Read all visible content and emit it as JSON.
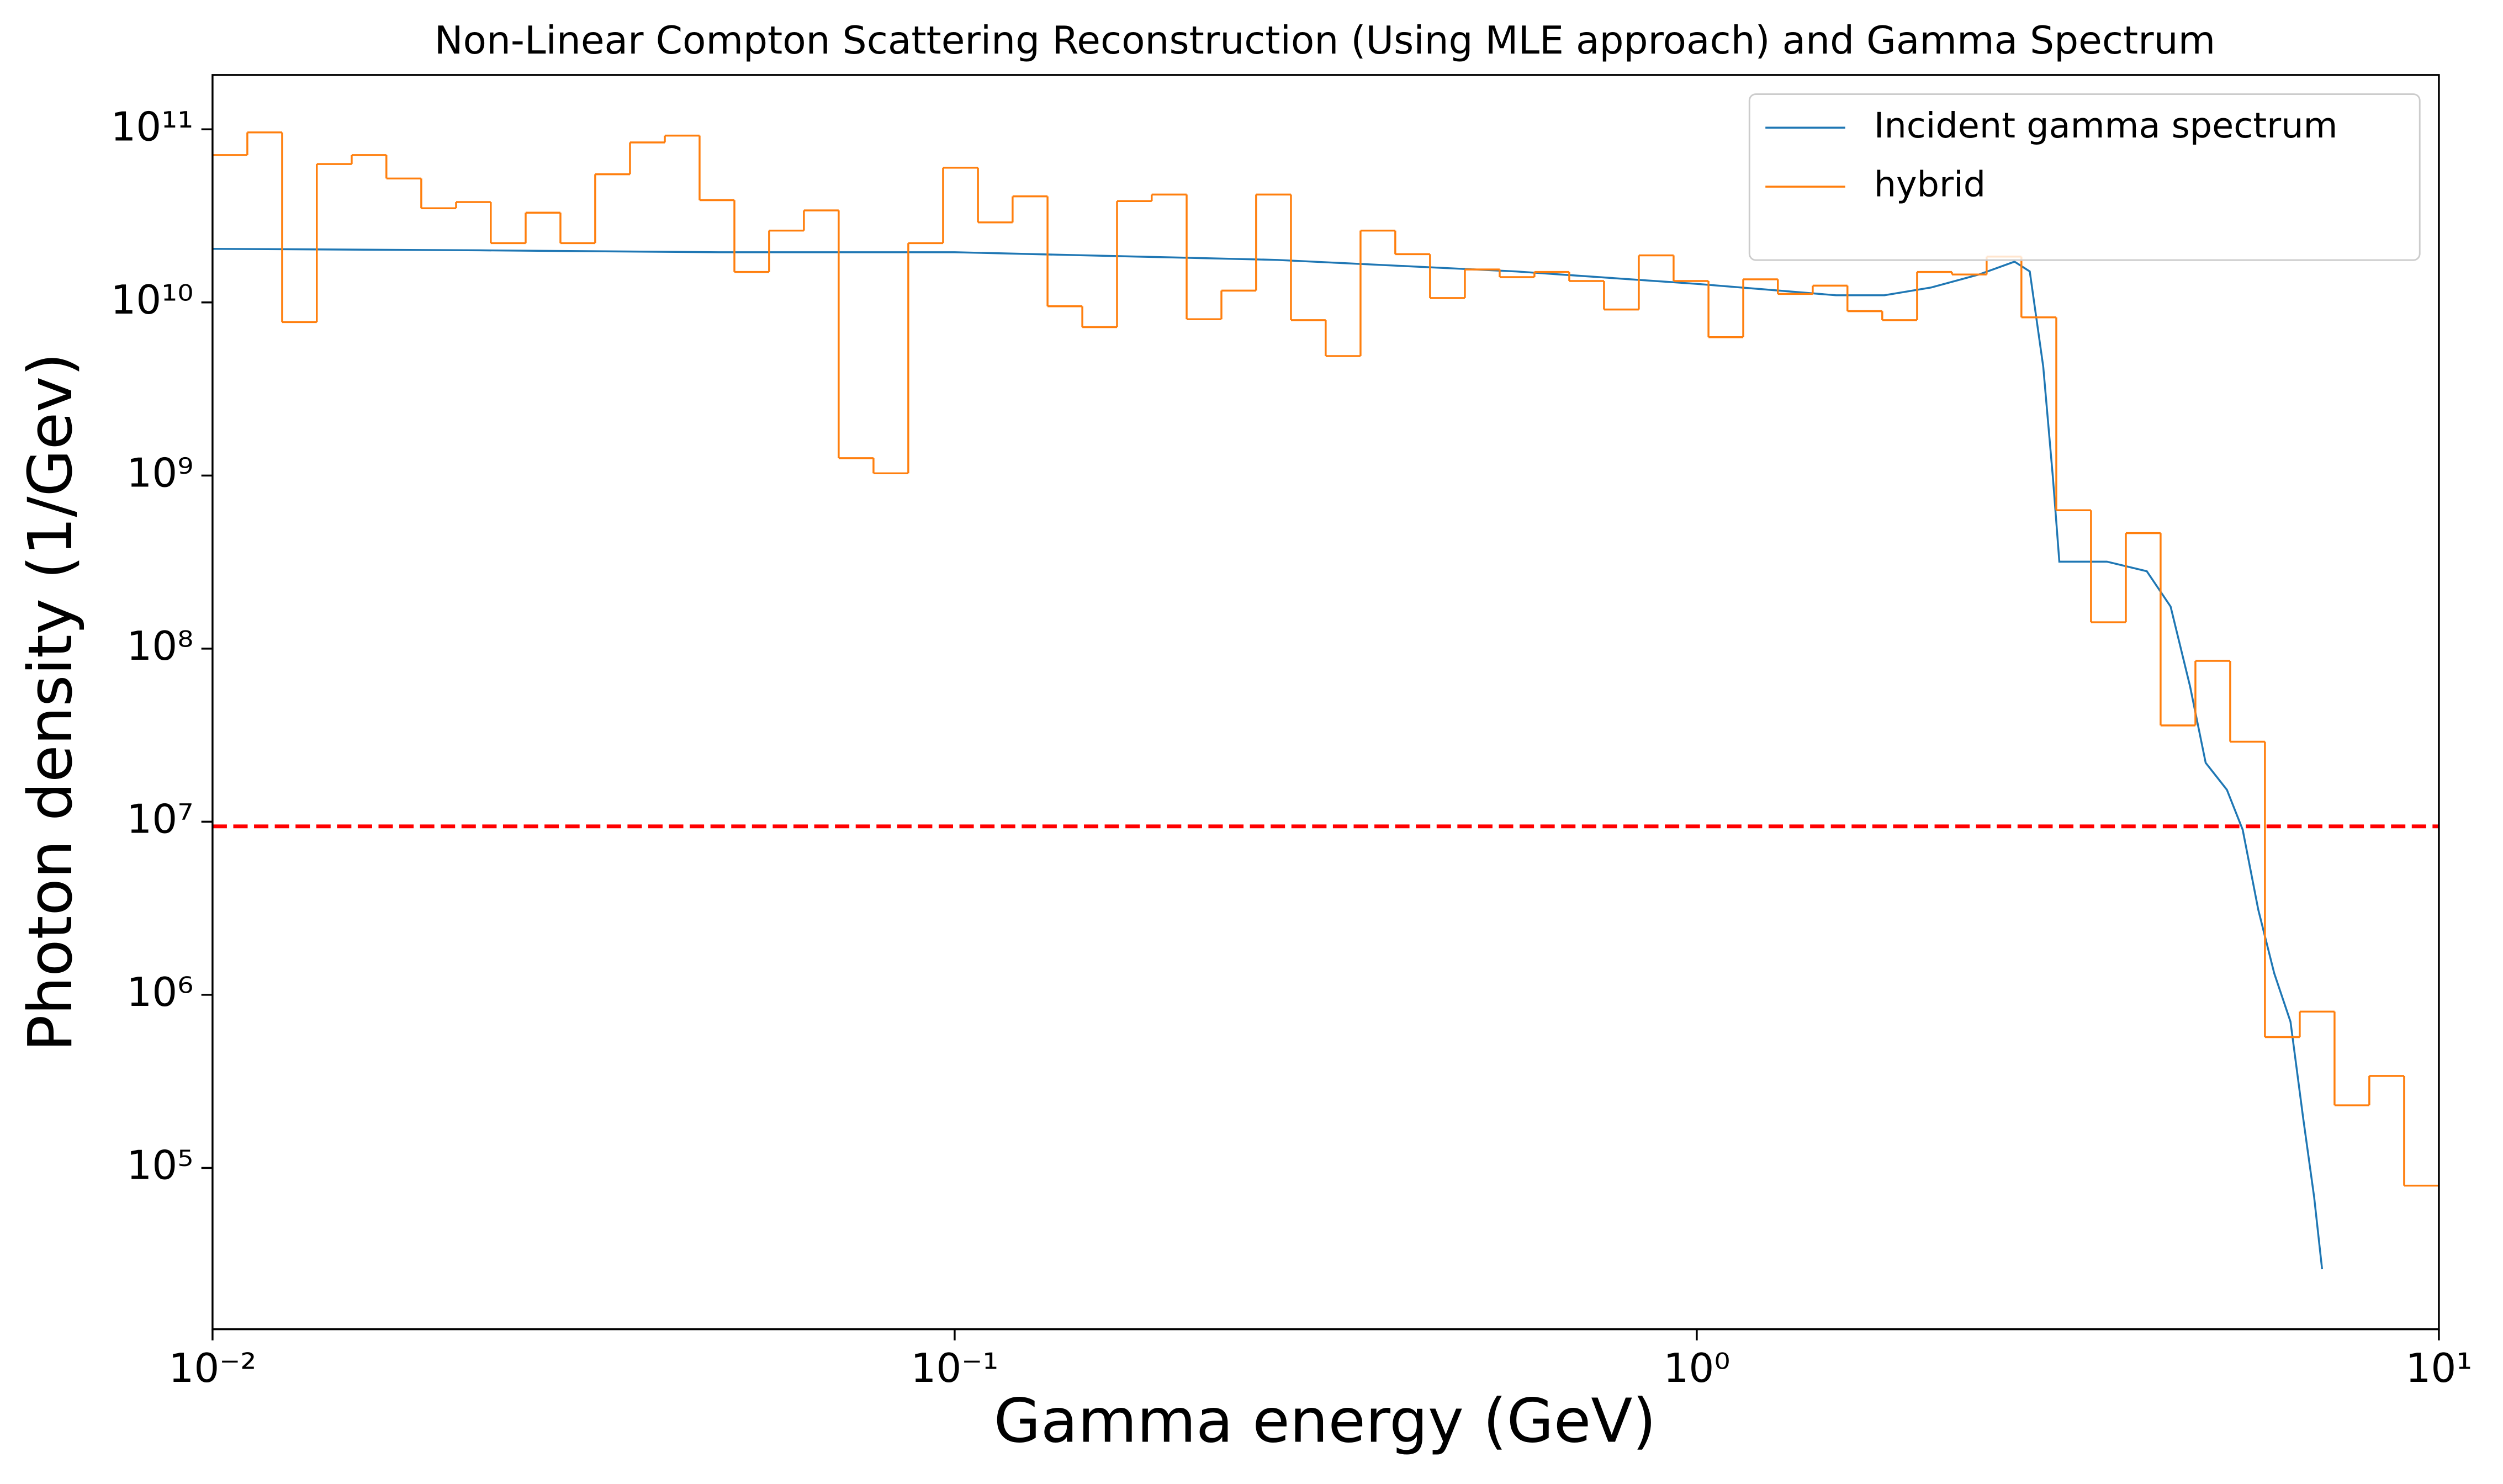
{
  "chart_data": {
    "type": "line",
    "title": "Non-Linear Compton Scattering Reconstruction (Using MLE approach) and Gamma Spectrum",
    "xlabel": "Gamma energy (GeV)",
    "ylabel": "Photon density (1/Gev)",
    "xscale": "log",
    "yscale": "log",
    "xlim": [
      0.01,
      10
    ],
    "ylim": [
      11700,
      206000000000
    ],
    "xticks": [
      {
        "value": 0.01,
        "label": "10⁻²"
      },
      {
        "value": 0.1,
        "label": "10⁻¹"
      },
      {
        "value": 1,
        "label": "10⁰"
      },
      {
        "value": 10,
        "label": "10¹"
      }
    ],
    "yticks": [
      {
        "value": 100000,
        "label": "10⁵"
      },
      {
        "value": 1000000,
        "label": "10⁶"
      },
      {
        "value": 10000000,
        "label": "10⁷"
      },
      {
        "value": 100000000,
        "label": "10⁸"
      },
      {
        "value": 1000000000,
        "label": "10⁹"
      },
      {
        "value": 10000000000,
        "label": "10¹⁰"
      },
      {
        "value": 100000000000,
        "label": "10¹¹"
      }
    ],
    "legend": "upper right",
    "series": [
      {
        "name": "Incident gamma spectrum",
        "color": "#1f77b4",
        "x": [
          0.01,
          0.0229,
          0.0481,
          0.1,
          0.272,
          0.571,
          1,
          1.54,
          1.79,
          2.07,
          2.4,
          2.68,
          2.81,
          2.93,
          3.02,
          3.08,
          3.57,
          4.04,
          4.35,
          4.62,
          4.85,
          5.18,
          5.44,
          5.71,
          6.0,
          6.31,
          6.56,
          6.79,
          6.96
        ],
        "values": [
          20400000000,
          20000000000,
          19500000000,
          19500000000,
          17600000000,
          15100000000,
          12800000000,
          11000000000,
          11000000000,
          12200000000,
          14500000000,
          17200000000,
          15100000000,
          4250000000,
          960000000,
          318000000,
          318000000,
          280000000,
          175000000,
          60700000,
          21900000,
          15300000,
          9000000,
          3100000,
          1330000,
          700000,
          197000,
          68000,
          26000
        ]
      },
      {
        "name": "hybrid",
        "color": "#ff7f0e",
        "type": "step",
        "bins": [
          0.01,
          0.01114,
          0.01241,
          0.01382,
          0.0154,
          0.01715,
          0.01911,
          0.02129,
          0.02371,
          0.02642,
          0.02943,
          0.03278,
          0.03652,
          0.04069,
          0.04532,
          0.05049,
          0.05623,
          0.06264,
          0.06978,
          0.07774,
          0.0866,
          0.09647,
          0.1075,
          0.1197,
          0.1334,
          0.1486,
          0.1655,
          0.1843,
          0.2054,
          0.2288,
          0.2548,
          0.2839,
          0.3162,
          0.3523,
          0.3924,
          0.4371,
          0.487,
          0.5425,
          0.6043,
          0.6732,
          0.7499,
          0.8354,
          0.9306,
          1.037,
          1.155,
          1.286,
          1.433,
          1.596,
          1.778,
          1.981,
          2.207,
          2.458,
          2.738,
          3.051,
          3.398,
          3.786,
          4.217,
          4.698,
          5.233,
          5.829,
          6.494,
          7.234,
          8.058,
          8.977,
          10
        ],
        "values": [
          71000000000,
          96000000000,
          7700000000,
          63000000000,
          71000000000,
          52000000000,
          35000000000,
          38000000000,
          22000000000,
          33000000000,
          22000000000,
          55000000000,
          84000000000,
          92000000000,
          39000000000,
          15000000000,
          26000000000,
          34000000000,
          1260000000,
          1030000000,
          22000000000,
          60000000000,
          29000000000,
          41000000000,
          9500000000,
          7200000000,
          38500000000,
          42000000000,
          8000000000,
          11700000000,
          42000000000,
          7900000000,
          4900000000,
          26000000000,
          19000000000,
          10600000000,
          15500000000,
          14000000000,
          15000000000,
          13300000000,
          9100000000,
          18700000000,
          13300000000,
          6300000000,
          13600000000,
          11200000000,
          12500000000,
          8900000000,
          7900000000,
          15000000000,
          14500000000,
          18400000000,
          8200000000,
          630000000,
          142000000,
          465000000,
          36000000,
          85000000,
          29000000,
          570000,
          800000,
          230000,
          340000,
          79000
        ]
      }
    ],
    "hlines": [
      {
        "value": 9400000,
        "color": "#ff0000",
        "style": "dashed"
      }
    ]
  }
}
